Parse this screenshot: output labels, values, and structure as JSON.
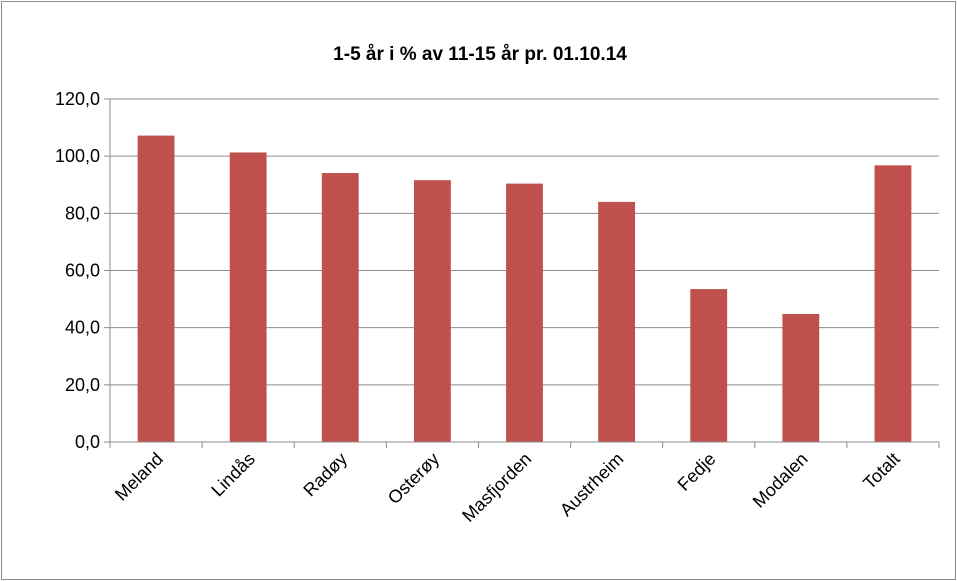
{
  "chart_data": {
    "type": "bar",
    "title": "1-5 år i % av 11-15 år pr. 01.10.14",
    "categories": [
      "Meland",
      "Lindås",
      "Radøy",
      "Osterøy",
      "Masfjorden",
      "Austrheim",
      "Fedje",
      "Modalen",
      "Totalt"
    ],
    "values": [
      107.2,
      101.3,
      94.1,
      91.6,
      90.4,
      84.0,
      53.5,
      44.8,
      96.8
    ],
    "ylim": [
      0,
      120
    ],
    "yticks": [
      "0,0",
      "20,0",
      "40,0",
      "60,0",
      "80,0",
      "100,0",
      "120,0"
    ],
    "xlabel": "",
    "ylabel": "",
    "grid": true,
    "legend": "none",
    "bar_color": "#c0504d",
    "grid_color": "#8c8c8c"
  }
}
